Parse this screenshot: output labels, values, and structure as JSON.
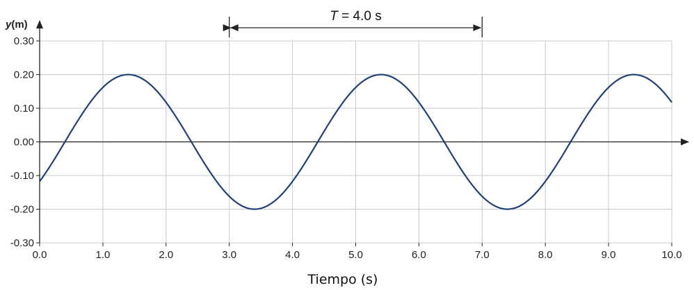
{
  "chart_data": {
    "type": "line",
    "xlabel": "Tiempo (s)",
    "ylabel": "y(m)",
    "ylabel_var": "y",
    "ylabel_unit": "(m)",
    "xlim": [
      0,
      10
    ],
    "ylim": [
      -0.3,
      0.3
    ],
    "x_ticks": [
      "0.0",
      "1.0",
      "2.0",
      "3.0",
      "4.0",
      "5.0",
      "6.0",
      "7.0",
      "8.0",
      "9.0",
      "10.0"
    ],
    "y_ticks": [
      "0.30",
      "0.20",
      "0.10",
      "0.00",
      "-0.10",
      "-0.20",
      "-0.30"
    ],
    "grid": true,
    "series": [
      {
        "color": "#1f3f7a",
        "function": "0.20*sin(pi*(t-0.4)/2)",
        "amplitude": 0.2,
        "period": 4.0,
        "x_start": 0.0,
        "x_end": 10.0,
        "points": [
          [
            0.0,
            -0.1176
          ],
          [
            0.4,
            0.0
          ],
          [
            1.4,
            0.2
          ],
          [
            2.4,
            0.0
          ],
          [
            3.4,
            -0.2
          ],
          [
            4.4,
            0.0
          ],
          [
            5.4,
            0.2
          ],
          [
            6.4,
            0.0
          ],
          [
            7.4,
            -0.2
          ],
          [
            8.4,
            0.0
          ],
          [
            9.4,
            0.2
          ],
          [
            10.0,
            0.1176
          ]
        ]
      }
    ],
    "annotation": {
      "var": "T",
      "eq": " = 4.0 s",
      "x_start": 3.0,
      "x_end": 7.0
    }
  }
}
